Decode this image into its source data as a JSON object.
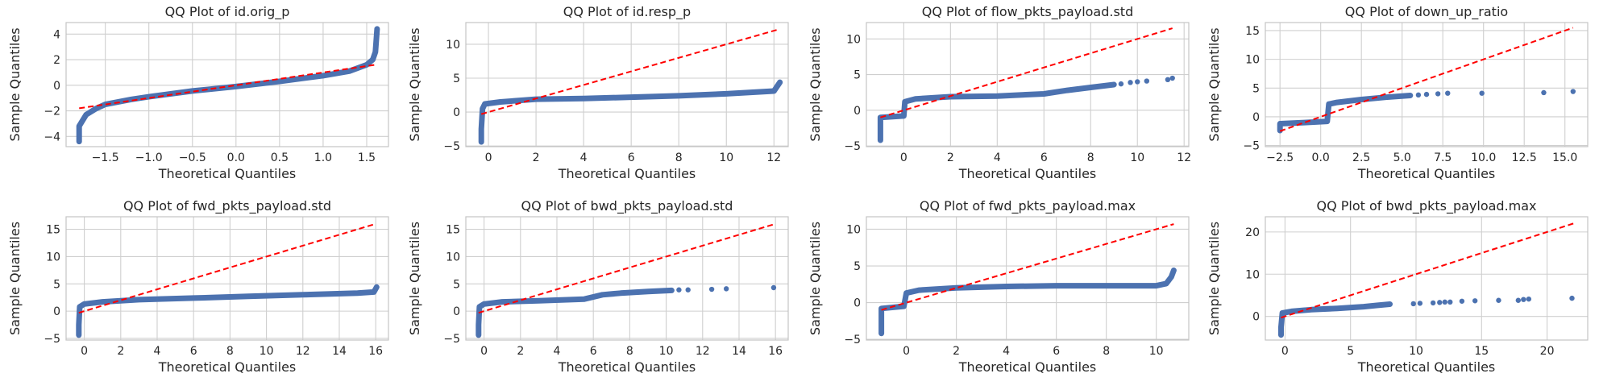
{
  "colors": {
    "points": "#4c72b0",
    "reference_line": "#ff0000",
    "grid": "#cfcfcf",
    "background": "#ffffff"
  },
  "chart_data": [
    {
      "type": "scatter",
      "title": "QQ Plot of id.orig_p",
      "xlabel": "Theoretical Quantiles",
      "ylabel": "Sample Quantiles",
      "xlim": [
        -1.95,
        1.75
      ],
      "ylim": [
        -4.8,
        4.9
      ],
      "xticks": [
        -1.5,
        -1.0,
        -0.5,
        0.0,
        0.5,
        1.0,
        1.5
      ],
      "xtick_labels": [
        "−1.5",
        "−1.0",
        "−0.5",
        "0.0",
        "0.5",
        "1.0",
        "1.5"
      ],
      "yticks": [
        -4,
        -2,
        0,
        2,
        4
      ],
      "ytick_labels": [
        "−4",
        "−2",
        "0",
        "2",
        "4"
      ],
      "reference_line": [
        [
          -1.8,
          -1.8
        ],
        [
          1.6,
          1.6
        ]
      ],
      "sample_curve": [
        [
          -1.8,
          -4.4
        ],
        [
          -1.8,
          -3.2
        ],
        [
          -1.72,
          -2.3
        ],
        [
          -1.6,
          -1.8
        ],
        [
          -1.5,
          -1.5
        ],
        [
          -1.2,
          -1.1
        ],
        [
          -1.0,
          -0.9
        ],
        [
          -0.5,
          -0.45
        ],
        [
          0.0,
          -0.1
        ],
        [
          0.5,
          0.3
        ],
        [
          1.0,
          0.75
        ],
        [
          1.3,
          1.1
        ],
        [
          1.5,
          1.6
        ],
        [
          1.57,
          2.0
        ],
        [
          1.6,
          2.6
        ],
        [
          1.62,
          4.4
        ]
      ],
      "outliers": []
    },
    {
      "type": "scatter",
      "title": "QQ Plot of id.resp_p",
      "xlabel": "Theoretical Quantiles",
      "ylabel": "Sample Quantiles",
      "xlim": [
        -0.95,
        12.6
      ],
      "ylim": [
        -5.1,
        13.2
      ],
      "xticks": [
        0,
        2,
        4,
        6,
        8,
        10,
        12
      ],
      "xtick_labels": [
        "0",
        "2",
        "4",
        "6",
        "8",
        "10",
        "12"
      ],
      "yticks": [
        -5,
        0,
        5,
        10
      ],
      "ytick_labels": [
        "−5",
        "0",
        "5",
        "10"
      ],
      "reference_line": [
        [
          -0.3,
          -0.3
        ],
        [
          12.2,
          12.2
        ]
      ],
      "sample_curve": [
        [
          -0.3,
          -4.4
        ],
        [
          -0.3,
          -2.5
        ],
        [
          -0.25,
          0.5
        ],
        [
          -0.15,
          1.2
        ],
        [
          0.5,
          1.5
        ],
        [
          2,
          1.9
        ],
        [
          4,
          2.0
        ],
        [
          6,
          2.2
        ],
        [
          8,
          2.4
        ],
        [
          10,
          2.7
        ],
        [
          12,
          3.1
        ],
        [
          12.25,
          4.4
        ]
      ],
      "outliers": []
    },
    {
      "type": "scatter",
      "title": "QQ Plot of flow_pkts_payload.std",
      "xlabel": "Theoretical Quantiles",
      "ylabel": "Sample Quantiles",
      "xlim": [
        -1.6,
        12.2
      ],
      "ylim": [
        -5.1,
        12.3
      ],
      "xticks": [
        0,
        2,
        4,
        6,
        8,
        10,
        12
      ],
      "xtick_labels": [
        "0",
        "2",
        "4",
        "6",
        "8",
        "10",
        "12"
      ],
      "yticks": [
        -5,
        0,
        5,
        10
      ],
      "ytick_labels": [
        "−5",
        "0",
        "5",
        "10"
      ],
      "reference_line": [
        [
          -1.0,
          -1.0
        ],
        [
          11.5,
          11.5
        ]
      ],
      "sample_curve": [
        [
          -1.0,
          -4.2
        ],
        [
          -1.0,
          -1.0
        ],
        [
          0.0,
          -0.8
        ],
        [
          0.05,
          1.2
        ],
        [
          0.5,
          1.6
        ],
        [
          2,
          1.9
        ],
        [
          4,
          2.0
        ],
        [
          6,
          2.3
        ],
        [
          7,
          2.8
        ],
        [
          8,
          3.2
        ],
        [
          9,
          3.6
        ]
      ],
      "outliers": [
        [
          9.3,
          3.7
        ],
        [
          9.7,
          3.9
        ],
        [
          10.0,
          4.0
        ],
        [
          10.4,
          4.1
        ],
        [
          11.3,
          4.3
        ],
        [
          11.5,
          4.5
        ]
      ]
    },
    {
      "type": "scatter",
      "title": "QQ Plot of down_up_ratio",
      "xlabel": "Theoretical Quantiles",
      "ylabel": "Sample Quantiles",
      "xlim": [
        -3.4,
        16.4
      ],
      "ylim": [
        -5.2,
        16.4
      ],
      "xticks": [
        -2.5,
        0.0,
        2.5,
        5.0,
        7.5,
        10.0,
        12.5,
        15.0
      ],
      "xtick_labels": [
        "−2.5",
        "0.0",
        "2.5",
        "5.0",
        "7.5",
        "10.0",
        "12.5",
        "15.0"
      ],
      "yticks": [
        -5,
        0,
        5,
        10,
        15
      ],
      "ytick_labels": [
        "−5",
        "0",
        "5",
        "10",
        "15"
      ],
      "reference_line": [
        [
          -2.5,
          -2.5
        ],
        [
          15.5,
          15.5
        ]
      ],
      "sample_curve": [
        [
          -2.5,
          -2.4
        ],
        [
          -2.5,
          -1.2
        ],
        [
          -1,
          -1.0
        ],
        [
          0.4,
          -0.8
        ],
        [
          0.5,
          2.2
        ],
        [
          1,
          2.5
        ],
        [
          2.5,
          3.0
        ],
        [
          4,
          3.4
        ],
        [
          5.5,
          3.7
        ]
      ],
      "outliers": [
        [
          6.0,
          3.8
        ],
        [
          6.5,
          3.9
        ],
        [
          7.2,
          4.0
        ],
        [
          7.8,
          4.1
        ],
        [
          9.9,
          4.1
        ],
        [
          13.7,
          4.2
        ],
        [
          15.5,
          4.4
        ]
      ]
    },
    {
      "type": "scatter",
      "title": "QQ Plot of fwd_pkts_payload.std",
      "xlabel": "Theoretical Quantiles",
      "ylabel": "Sample Quantiles",
      "xlim": [
        -1.0,
        16.7
      ],
      "ylim": [
        -5.3,
        17.3
      ],
      "xticks": [
        0,
        2,
        4,
        6,
        8,
        10,
        12,
        14,
        16
      ],
      "xtick_labels": [
        "0",
        "2",
        "4",
        "6",
        "8",
        "10",
        "12",
        "14",
        "16"
      ],
      "yticks": [
        -5,
        0,
        5,
        10,
        15
      ],
      "ytick_labels": [
        "−5",
        "0",
        "5",
        "10",
        "15"
      ],
      "reference_line": [
        [
          -0.3,
          -0.3
        ],
        [
          16.0,
          16.0
        ]
      ],
      "sample_curve": [
        [
          -0.3,
          -4.4
        ],
        [
          -0.3,
          -2.5
        ],
        [
          -0.25,
          0.8
        ],
        [
          0,
          1.3
        ],
        [
          1,
          1.7
        ],
        [
          3,
          2.1
        ],
        [
          6,
          2.4
        ],
        [
          9,
          2.7
        ],
        [
          12,
          3.0
        ],
        [
          15,
          3.3
        ],
        [
          15.9,
          3.5
        ],
        [
          16.05,
          4.4
        ]
      ],
      "outliers": []
    },
    {
      "type": "scatter",
      "title": "QQ Plot of bwd_pkts_payload.std",
      "xlabel": "Theoretical Quantiles",
      "ylabel": "Sample Quantiles",
      "xlim": [
        -1.0,
        16.7
      ],
      "ylim": [
        -5.3,
        17.3
      ],
      "xticks": [
        0,
        2,
        4,
        6,
        8,
        10,
        12,
        14,
        16
      ],
      "xtick_labels": [
        "0",
        "2",
        "4",
        "6",
        "8",
        "10",
        "12",
        "14",
        "16"
      ],
      "yticks": [
        -5,
        0,
        5,
        10,
        15
      ],
      "ytick_labels": [
        "−5",
        "0",
        "5",
        "10",
        "15"
      ],
      "reference_line": [
        [
          -0.3,
          -0.3
        ],
        [
          16.0,
          16.0
        ]
      ],
      "sample_curve": [
        [
          -0.3,
          -4.4
        ],
        [
          -0.3,
          -2.5
        ],
        [
          -0.25,
          0.8
        ],
        [
          0,
          1.3
        ],
        [
          1,
          1.7
        ],
        [
          3,
          1.9
        ],
        [
          5.5,
          2.2
        ],
        [
          6.5,
          3.0
        ],
        [
          7.5,
          3.3
        ],
        [
          9,
          3.6
        ],
        [
          10.3,
          3.8
        ]
      ],
      "outliers": [
        [
          10.7,
          3.9
        ],
        [
          11.2,
          3.9
        ],
        [
          12.5,
          4.0
        ],
        [
          13.3,
          4.1
        ],
        [
          15.9,
          4.3
        ]
      ]
    },
    {
      "type": "scatter",
      "title": "QQ Plot of fwd_pkts_payload.max",
      "xlabel": "Theoretical Quantiles",
      "ylabel": "Sample Quantiles",
      "xlim": [
        -1.6,
        11.3
      ],
      "ylim": [
        -5.1,
        11.7
      ],
      "xticks": [
        0,
        2,
        4,
        6,
        8,
        10
      ],
      "xtick_labels": [
        "0",
        "2",
        "4",
        "6",
        "8",
        "10"
      ],
      "yticks": [
        -5,
        0,
        5,
        10
      ],
      "ytick_labels": [
        "−5",
        "0",
        "5",
        "10"
      ],
      "reference_line": [
        [
          -1.0,
          -1.0
        ],
        [
          10.7,
          10.7
        ]
      ],
      "sample_curve": [
        [
          -1.0,
          -4.2
        ],
        [
          -1.0,
          -0.8
        ],
        [
          -0.1,
          -0.5
        ],
        [
          0,
          1.3
        ],
        [
          0.5,
          1.7
        ],
        [
          2,
          2.0
        ],
        [
          4,
          2.2
        ],
        [
          6,
          2.3
        ],
        [
          8,
          2.3
        ],
        [
          10,
          2.3
        ],
        [
          10.4,
          2.6
        ],
        [
          10.6,
          3.5
        ],
        [
          10.7,
          4.4
        ]
      ],
      "outliers": []
    },
    {
      "type": "scatter",
      "title": "QQ Plot of bwd_pkts_payload.max",
      "xlabel": "Theoretical Quantiles",
      "ylabel": "Sample Quantiles",
      "xlim": [
        -1.5,
        23.1
      ],
      "ylim": [
        -5.6,
        23.6
      ],
      "xticks": [
        0,
        5,
        10,
        15,
        20
      ],
      "xtick_labels": [
        "0",
        "5",
        "10",
        "15",
        "20"
      ],
      "yticks": [
        0,
        10,
        20
      ],
      "ytick_labels": [
        "0",
        "10",
        "20"
      ],
      "reference_line": [
        [
          -0.3,
          -0.3
        ],
        [
          22.0,
          22.0
        ]
      ],
      "sample_curve": [
        [
          -0.3,
          -4.4
        ],
        [
          -0.3,
          -2.5
        ],
        [
          -0.2,
          0.8
        ],
        [
          0.5,
          1.2
        ],
        [
          2,
          1.6
        ],
        [
          4,
          1.9
        ],
        [
          6,
          2.3
        ],
        [
          7,
          2.6
        ],
        [
          8,
          2.9
        ]
      ],
      "outliers": [
        [
          9.8,
          3.0
        ],
        [
          10.3,
          3.1
        ],
        [
          11.3,
          3.2
        ],
        [
          11.8,
          3.3
        ],
        [
          12.2,
          3.4
        ],
        [
          12.6,
          3.4
        ],
        [
          13.5,
          3.6
        ],
        [
          14.5,
          3.7
        ],
        [
          16.3,
          3.8
        ],
        [
          17.8,
          3.8
        ],
        [
          18.2,
          4.0
        ],
        [
          18.6,
          4.1
        ],
        [
          21.9,
          4.3
        ]
      ]
    }
  ]
}
